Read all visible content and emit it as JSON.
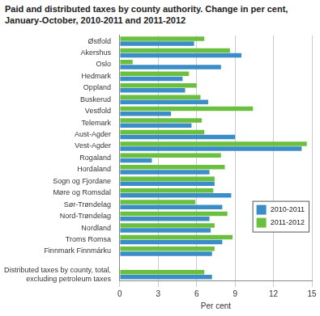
{
  "chart_data": {
    "type": "bar",
    "orientation": "horizontal",
    "title": "Paid and distributed taxes by county authority. Change in per cent, January-October, 2010-2011 and 2011-2012",
    "x_label": "Per cent",
    "categories": [
      "Østfold",
      "Akershus",
      "Oslo",
      "Hedmark",
      "Oppland",
      "Buskerud",
      "Vestfold",
      "Telemark",
      "Aust-Agder",
      "Vest-Agder",
      "Rogaland",
      "Hordaland",
      "Sogn og Fjordane",
      "Møre og Romsdal",
      "Sør-Trøndelag",
      "Nord-Trøndelag",
      "Nordland",
      "Troms Romsa",
      "Finnmark Finnmárku",
      null,
      "Distributed taxes by county, total, excluding petroleum taxes"
    ],
    "series": [
      {
        "name": "2010-2011",
        "color": "#3a8dc6",
        "values": [
          5.8,
          9.5,
          7.9,
          4.9,
          5.1,
          6.9,
          4.0,
          5.6,
          9.0,
          14.2,
          2.5,
          7.0,
          7.4,
          8.7,
          8.0,
          7.0,
          7.1,
          8.0,
          7.2,
          null,
          7.2
        ]
      },
      {
        "name": "2011-2012",
        "color": "#6abf3e",
        "values": [
          6.6,
          8.6,
          1.0,
          5.4,
          6.0,
          6.3,
          10.4,
          6.4,
          6.6,
          14.6,
          7.9,
          8.2,
          7.4,
          7.3,
          5.9,
          8.4,
          7.4,
          8.8,
          7.4,
          null,
          6.6
        ]
      }
    ],
    "xlim": [
      0,
      15
    ],
    "xticks": [
      0,
      3,
      6,
      9,
      12,
      15
    ],
    "grid": true,
    "legend": "lower right"
  }
}
